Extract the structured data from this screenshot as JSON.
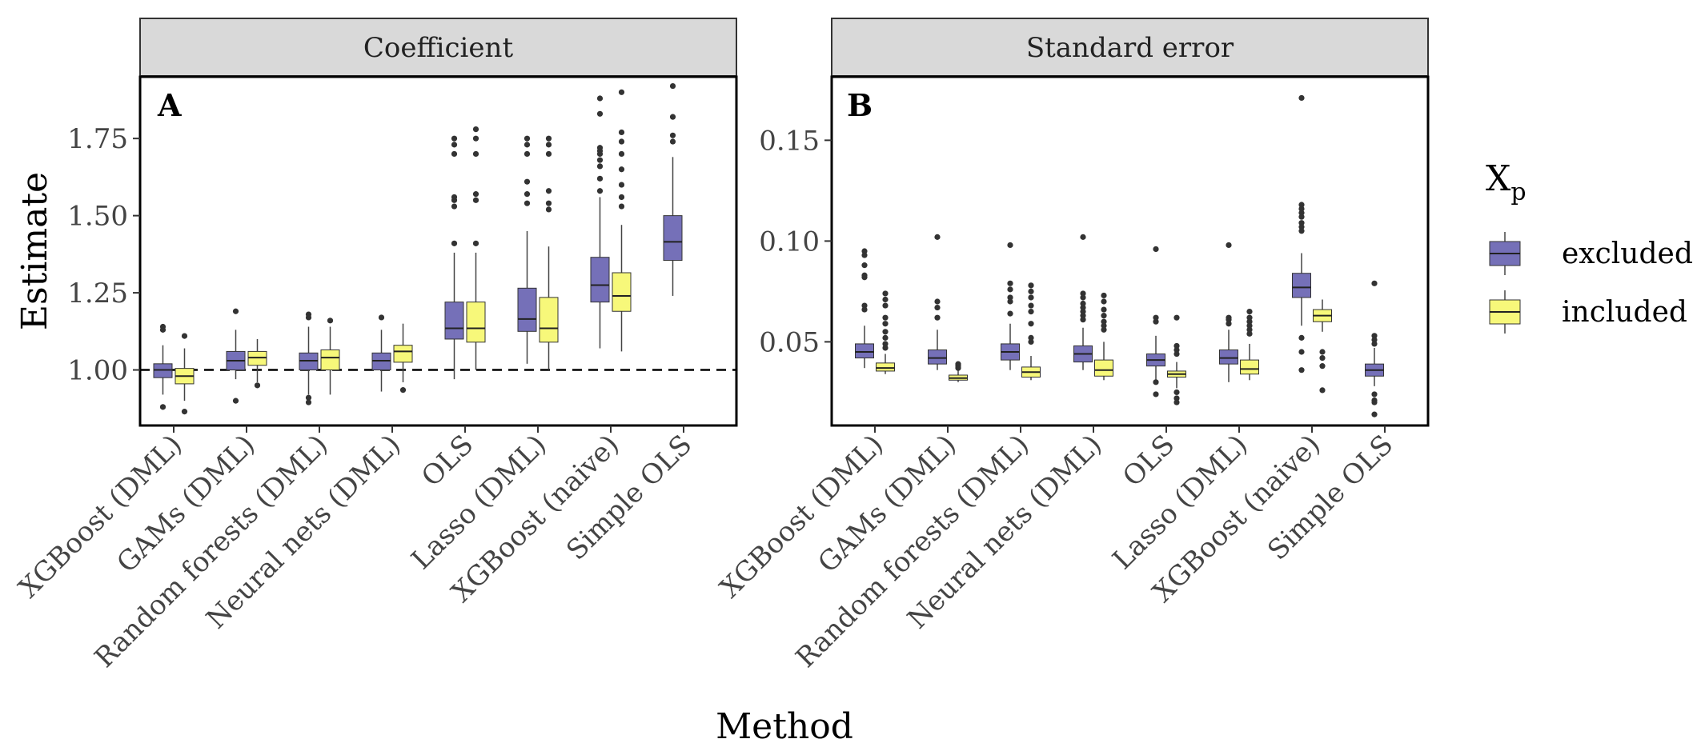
{
  "chart_data": [
    {
      "type": "boxplot",
      "panel_tag": "A",
      "strip_title": "Coefficient",
      "ylabel": "Estimate",
      "xlabel": "Method",
      "ylim": [
        0.82,
        1.95
      ],
      "yticks": [
        1.0,
        1.25,
        1.5,
        1.75
      ],
      "ytick_labels": [
        "1.00",
        "1.25",
        "1.50",
        "1.75"
      ],
      "reference_line": 1.0,
      "categories": [
        "XGBoost (DML)",
        "GAMs (DML)",
        "Random forests (DML)",
        "Neural nets (DML)",
        "OLS",
        "Lasso (DML)",
        "XGBoost (naive)",
        "Simple OLS"
      ],
      "series": [
        {
          "name": "excluded",
          "color": "#7570b8",
          "boxes": [
            {
              "min": 0.92,
              "q1": 0.975,
              "median": 1.0,
              "q3": 1.02,
              "max": 1.08,
              "outliers": [
                1.14,
                1.13,
                0.88
              ]
            },
            {
              "min": 0.97,
              "q1": 1.0,
              "median": 1.03,
              "q3": 1.06,
              "max": 1.13,
              "outliers": [
                1.19,
                0.9
              ]
            },
            {
              "min": 0.92,
              "q1": 1.0,
              "median": 1.03,
              "q3": 1.055,
              "max": 1.14,
              "outliers": [
                1.18,
                1.17,
                0.91,
                0.895
              ]
            },
            {
              "min": 0.93,
              "q1": 1.0,
              "median": 1.03,
              "q3": 1.055,
              "max": 1.13,
              "outliers": [
                1.17
              ]
            },
            {
              "min": 0.97,
              "q1": 1.1,
              "median": 1.135,
              "q3": 1.22,
              "max": 1.38,
              "outliers": [
                1.41,
                1.53,
                1.55,
                1.56,
                1.7,
                1.73,
                1.75
              ]
            },
            {
              "min": 1.02,
              "q1": 1.125,
              "median": 1.165,
              "q3": 1.265,
              "max": 1.45,
              "outliers": [
                1.54,
                1.57,
                1.61,
                1.7,
                1.73,
                1.75
              ]
            },
            {
              "min": 1.07,
              "q1": 1.22,
              "median": 1.275,
              "q3": 1.365,
              "max": 1.56,
              "outliers": [
                1.58,
                1.62,
                1.66,
                1.68,
                1.7,
                1.71,
                1.72,
                1.83,
                1.88
              ]
            },
            {
              "min": 1.24,
              "q1": 1.355,
              "median": 1.415,
              "q3": 1.5,
              "max": 1.69,
              "outliers": [
                1.74,
                1.76,
                1.82,
                1.92
              ]
            }
          ]
        },
        {
          "name": "included",
          "color": "#f7f87a",
          "boxes": [
            {
              "min": 0.9,
              "q1": 0.955,
              "median": 0.98,
              "q3": 1.005,
              "max": 1.07,
              "outliers": [
                1.11,
                0.865
              ]
            },
            {
              "min": 0.96,
              "q1": 1.015,
              "median": 1.04,
              "q3": 1.06,
              "max": 1.1,
              "outliers": [
                0.95
              ]
            },
            {
              "min": 0.92,
              "q1": 1.0,
              "median": 1.04,
              "q3": 1.065,
              "max": 1.14,
              "outliers": [
                1.16
              ]
            },
            {
              "min": 0.96,
              "q1": 1.025,
              "median": 1.06,
              "q3": 1.08,
              "max": 1.15,
              "outliers": [
                0.935
              ]
            },
            {
              "min": 1.0,
              "q1": 1.09,
              "median": 1.135,
              "q3": 1.22,
              "max": 1.38,
              "outliers": [
                1.41,
                1.55,
                1.57,
                1.7,
                1.75,
                1.78
              ]
            },
            {
              "min": 1.0,
              "q1": 1.09,
              "median": 1.135,
              "q3": 1.235,
              "max": 1.4,
              "outliers": [
                1.52,
                1.54,
                1.58,
                1.7,
                1.73,
                1.75
              ]
            },
            {
              "min": 1.06,
              "q1": 1.19,
              "median": 1.24,
              "q3": 1.315,
              "max": 1.47,
              "outliers": [
                1.53,
                1.56,
                1.6,
                1.65,
                1.7,
                1.74,
                1.77,
                1.9
              ]
            }
          ]
        }
      ]
    },
    {
      "type": "boxplot",
      "panel_tag": "B",
      "strip_title": "Standard error",
      "ylabel": "",
      "xlabel": "Method",
      "ylim": [
        0.0085,
        0.1815
      ],
      "yticks": [
        0.05,
        0.1,
        0.15
      ],
      "ytick_labels": [
        "0.05",
        "0.10",
        "0.15"
      ],
      "categories": [
        "XGBoost (DML)",
        "GAMs (DML)",
        "Random forests (DML)",
        "Neural nets (DML)",
        "OLS",
        "Lasso (DML)",
        "XGBoost (naive)",
        "Simple OLS"
      ],
      "series": [
        {
          "name": "excluded",
          "color": "#7570b8",
          "boxes": [
            {
              "min": 0.037,
              "q1": 0.042,
              "median": 0.045,
              "q3": 0.049,
              "max": 0.058,
              "outliers": [
                0.095,
                0.093,
                0.088,
                0.083,
                0.082,
                0.068,
                0.066
              ]
            },
            {
              "min": 0.036,
              "q1": 0.039,
              "median": 0.042,
              "q3": 0.046,
              "max": 0.056,
              "outliers": [
                0.102,
                0.07,
                0.067,
                0.062
              ]
            },
            {
              "min": 0.036,
              "q1": 0.041,
              "median": 0.045,
              "q3": 0.049,
              "max": 0.059,
              "outliers": [
                0.098,
                0.079,
                0.076,
                0.072,
                0.07,
                0.064
              ]
            },
            {
              "min": 0.036,
              "q1": 0.04,
              "median": 0.044,
              "q3": 0.048,
              "max": 0.057,
              "outliers": [
                0.102,
                0.074,
                0.072,
                0.069,
                0.067,
                0.065,
                0.063,
                0.061
              ]
            },
            {
              "min": 0.031,
              "q1": 0.038,
              "median": 0.041,
              "q3": 0.044,
              "max": 0.053,
              "outliers": [
                0.096,
                0.062,
                0.06,
                0.03,
                0.024
              ]
            },
            {
              "min": 0.03,
              "q1": 0.039,
              "median": 0.042,
              "q3": 0.046,
              "max": 0.056,
              "outliers": [
                0.098,
                0.062,
                0.061,
                0.059
              ]
            },
            {
              "min": 0.058,
              "q1": 0.072,
              "median": 0.077,
              "q3": 0.084,
              "max": 0.094,
              "outliers": [
                0.171,
                0.118,
                0.116,
                0.114,
                0.112,
                0.109,
                0.107,
                0.105,
                0.052,
                0.045,
                0.036
              ]
            },
            {
              "min": 0.028,
              "q1": 0.033,
              "median": 0.036,
              "q3": 0.039,
              "max": 0.047,
              "outliers": [
                0.079,
                0.053,
                0.051,
                0.049,
                0.024,
                0.021,
                0.02,
                0.014
              ]
            }
          ]
        },
        {
          "name": "included",
          "color": "#f7f87a",
          "boxes": [
            {
              "min": 0.034,
              "q1": 0.0355,
              "median": 0.037,
              "q3": 0.0395,
              "max": 0.044,
              "outliers": [
                0.074,
                0.071,
                0.068,
                0.062,
                0.059,
                0.055,
                0.052,
                0.049,
                0.047
              ]
            },
            {
              "min": 0.03,
              "q1": 0.031,
              "median": 0.032,
              "q3": 0.0335,
              "max": 0.036,
              "outliers": [
                0.039,
                0.038,
                0.037
              ]
            },
            {
              "min": 0.031,
              "q1": 0.0325,
              "median": 0.035,
              "q3": 0.0375,
              "max": 0.043,
              "outliers": [
                0.078,
                0.075,
                0.072,
                0.068,
                0.065,
                0.059,
                0.052,
                0.05
              ]
            },
            {
              "min": 0.031,
              "q1": 0.033,
              "median": 0.036,
              "q3": 0.041,
              "max": 0.05,
              "outliers": [
                0.073,
                0.07,
                0.066,
                0.063,
                0.06,
                0.058,
                0.056
              ]
            },
            {
              "min": 0.027,
              "q1": 0.0325,
              "median": 0.034,
              "q3": 0.0355,
              "max": 0.04,
              "outliers": [
                0.062,
                0.048,
                0.046,
                0.044,
                0.025,
                0.022,
                0.02
              ]
            },
            {
              "min": 0.031,
              "q1": 0.034,
              "median": 0.0365,
              "q3": 0.041,
              "max": 0.049,
              "outliers": [
                0.065,
                0.062,
                0.06,
                0.058,
                0.056,
                0.054
              ]
            },
            {
              "min": 0.055,
              "q1": 0.06,
              "median": 0.063,
              "q3": 0.066,
              "max": 0.071,
              "outliers": [
                0.045,
                0.042,
                0.038,
                0.026
              ]
            }
          ]
        }
      ]
    }
  ],
  "legend": {
    "title_main": "X",
    "title_sub": "p",
    "items": [
      {
        "label": "excluded",
        "color": "#7570b8"
      },
      {
        "label": "included",
        "color": "#f7f87a"
      }
    ]
  },
  "colors": {
    "strip_fill": "#d9d9d9",
    "median_line": "#222222",
    "whisker": "#444444",
    "outlier": "#333333"
  }
}
